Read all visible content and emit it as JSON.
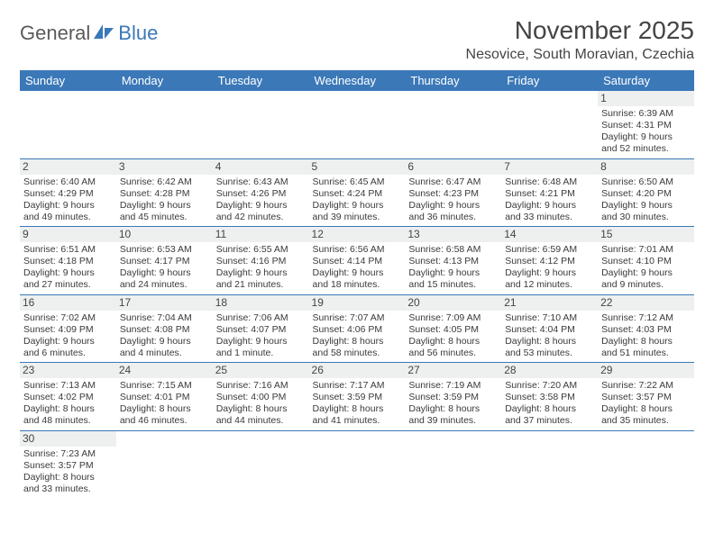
{
  "logo": {
    "text1": "General",
    "text2": "Blue"
  },
  "title": "November 2025",
  "location": "Nesovice, South Moravian, Czechia",
  "colors": {
    "header_bg": "#3b78b8",
    "header_text": "#ffffff",
    "daynum_bg": "#eef0f0",
    "row_border": "#3b78b8",
    "body_text": "#3a3a3a",
    "background": "#ffffff",
    "logo_accent": "#3b78b8",
    "logo_gray": "#5a5a5a"
  },
  "typography": {
    "title_fontsize": 28,
    "location_fontsize": 16,
    "header_fontsize": 13,
    "daynum_fontsize": 12,
    "cell_fontsize": 10.5
  },
  "weekdays": [
    "Sunday",
    "Monday",
    "Tuesday",
    "Wednesday",
    "Thursday",
    "Friday",
    "Saturday"
  ],
  "weeks": [
    [
      null,
      null,
      null,
      null,
      null,
      null,
      {
        "day": "1",
        "sunrise": "Sunrise: 6:39 AM",
        "sunset": "Sunset: 4:31 PM",
        "daylight": "Daylight: 9 hours and 52 minutes."
      }
    ],
    [
      {
        "day": "2",
        "sunrise": "Sunrise: 6:40 AM",
        "sunset": "Sunset: 4:29 PM",
        "daylight": "Daylight: 9 hours and 49 minutes."
      },
      {
        "day": "3",
        "sunrise": "Sunrise: 6:42 AM",
        "sunset": "Sunset: 4:28 PM",
        "daylight": "Daylight: 9 hours and 45 minutes."
      },
      {
        "day": "4",
        "sunrise": "Sunrise: 6:43 AM",
        "sunset": "Sunset: 4:26 PM",
        "daylight": "Daylight: 9 hours and 42 minutes."
      },
      {
        "day": "5",
        "sunrise": "Sunrise: 6:45 AM",
        "sunset": "Sunset: 4:24 PM",
        "daylight": "Daylight: 9 hours and 39 minutes."
      },
      {
        "day": "6",
        "sunrise": "Sunrise: 6:47 AM",
        "sunset": "Sunset: 4:23 PM",
        "daylight": "Daylight: 9 hours and 36 minutes."
      },
      {
        "day": "7",
        "sunrise": "Sunrise: 6:48 AM",
        "sunset": "Sunset: 4:21 PM",
        "daylight": "Daylight: 9 hours and 33 minutes."
      },
      {
        "day": "8",
        "sunrise": "Sunrise: 6:50 AM",
        "sunset": "Sunset: 4:20 PM",
        "daylight": "Daylight: 9 hours and 30 minutes."
      }
    ],
    [
      {
        "day": "9",
        "sunrise": "Sunrise: 6:51 AM",
        "sunset": "Sunset: 4:18 PM",
        "daylight": "Daylight: 9 hours and 27 minutes."
      },
      {
        "day": "10",
        "sunrise": "Sunrise: 6:53 AM",
        "sunset": "Sunset: 4:17 PM",
        "daylight": "Daylight: 9 hours and 24 minutes."
      },
      {
        "day": "11",
        "sunrise": "Sunrise: 6:55 AM",
        "sunset": "Sunset: 4:16 PM",
        "daylight": "Daylight: 9 hours and 21 minutes."
      },
      {
        "day": "12",
        "sunrise": "Sunrise: 6:56 AM",
        "sunset": "Sunset: 4:14 PM",
        "daylight": "Daylight: 9 hours and 18 minutes."
      },
      {
        "day": "13",
        "sunrise": "Sunrise: 6:58 AM",
        "sunset": "Sunset: 4:13 PM",
        "daylight": "Daylight: 9 hours and 15 minutes."
      },
      {
        "day": "14",
        "sunrise": "Sunrise: 6:59 AM",
        "sunset": "Sunset: 4:12 PM",
        "daylight": "Daylight: 9 hours and 12 minutes."
      },
      {
        "day": "15",
        "sunrise": "Sunrise: 7:01 AM",
        "sunset": "Sunset: 4:10 PM",
        "daylight": "Daylight: 9 hours and 9 minutes."
      }
    ],
    [
      {
        "day": "16",
        "sunrise": "Sunrise: 7:02 AM",
        "sunset": "Sunset: 4:09 PM",
        "daylight": "Daylight: 9 hours and 6 minutes."
      },
      {
        "day": "17",
        "sunrise": "Sunrise: 7:04 AM",
        "sunset": "Sunset: 4:08 PM",
        "daylight": "Daylight: 9 hours and 4 minutes."
      },
      {
        "day": "18",
        "sunrise": "Sunrise: 7:06 AM",
        "sunset": "Sunset: 4:07 PM",
        "daylight": "Daylight: 9 hours and 1 minute."
      },
      {
        "day": "19",
        "sunrise": "Sunrise: 7:07 AM",
        "sunset": "Sunset: 4:06 PM",
        "daylight": "Daylight: 8 hours and 58 minutes."
      },
      {
        "day": "20",
        "sunrise": "Sunrise: 7:09 AM",
        "sunset": "Sunset: 4:05 PM",
        "daylight": "Daylight: 8 hours and 56 minutes."
      },
      {
        "day": "21",
        "sunrise": "Sunrise: 7:10 AM",
        "sunset": "Sunset: 4:04 PM",
        "daylight": "Daylight: 8 hours and 53 minutes."
      },
      {
        "day": "22",
        "sunrise": "Sunrise: 7:12 AM",
        "sunset": "Sunset: 4:03 PM",
        "daylight": "Daylight: 8 hours and 51 minutes."
      }
    ],
    [
      {
        "day": "23",
        "sunrise": "Sunrise: 7:13 AM",
        "sunset": "Sunset: 4:02 PM",
        "daylight": "Daylight: 8 hours and 48 minutes."
      },
      {
        "day": "24",
        "sunrise": "Sunrise: 7:15 AM",
        "sunset": "Sunset: 4:01 PM",
        "daylight": "Daylight: 8 hours and 46 minutes."
      },
      {
        "day": "25",
        "sunrise": "Sunrise: 7:16 AM",
        "sunset": "Sunset: 4:00 PM",
        "daylight": "Daylight: 8 hours and 44 minutes."
      },
      {
        "day": "26",
        "sunrise": "Sunrise: 7:17 AM",
        "sunset": "Sunset: 3:59 PM",
        "daylight": "Daylight: 8 hours and 41 minutes."
      },
      {
        "day": "27",
        "sunrise": "Sunrise: 7:19 AM",
        "sunset": "Sunset: 3:59 PM",
        "daylight": "Daylight: 8 hours and 39 minutes."
      },
      {
        "day": "28",
        "sunrise": "Sunrise: 7:20 AM",
        "sunset": "Sunset: 3:58 PM",
        "daylight": "Daylight: 8 hours and 37 minutes."
      },
      {
        "day": "29",
        "sunrise": "Sunrise: 7:22 AM",
        "sunset": "Sunset: 3:57 PM",
        "daylight": "Daylight: 8 hours and 35 minutes."
      }
    ],
    [
      {
        "day": "30",
        "sunrise": "Sunrise: 7:23 AM",
        "sunset": "Sunset: 3:57 PM",
        "daylight": "Daylight: 8 hours and 33 minutes."
      },
      null,
      null,
      null,
      null,
      null,
      null
    ]
  ]
}
